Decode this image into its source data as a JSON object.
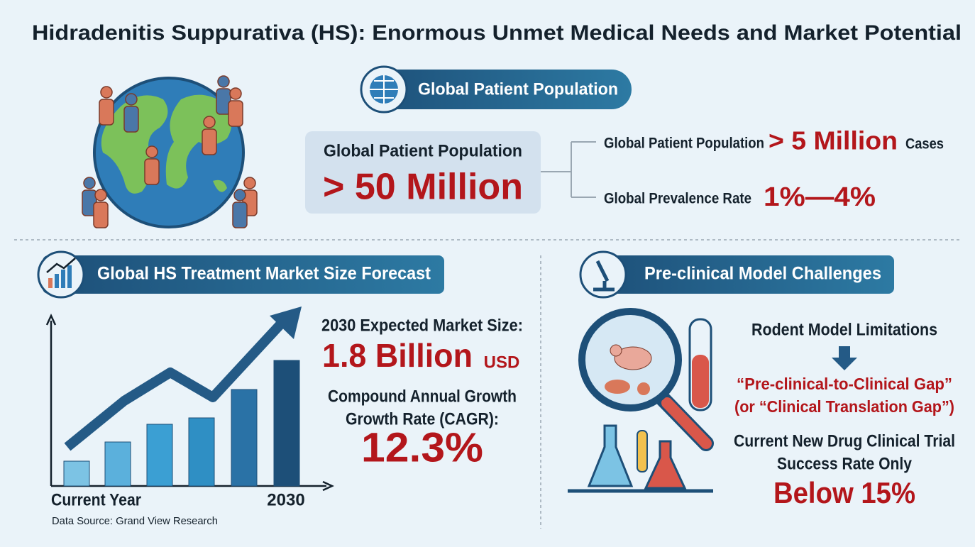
{
  "header": {
    "title": "Hidradenitis Suppurativa (HS): Enormous Unmet Medical Needs and Market Potential"
  },
  "population": {
    "heading": "Global Patient Population",
    "box_label": "Global Patient Population",
    "box_value": "> 50 Million",
    "cases_label": "Global Patient Population",
    "cases_value": "> 5 Million",
    "cases_unit": "Cases",
    "prevalence_label": "Global Prevalence Rate",
    "prevalence_value": "1%—4%"
  },
  "market": {
    "heading": "Global HS Treatment Market Size Forecast",
    "x_start_label": "Current Year",
    "x_end_label": "2030",
    "source": "Data Source: Grand View Research",
    "size_label": "2030 Expected Market Size:",
    "size_value": "1.8 Billion",
    "size_unit": "USD",
    "cagr_label_1": "Compound Annual Growth",
    "cagr_label_2": "Growth Rate (CAGR):",
    "cagr_value": "12.3%"
  },
  "preclinical": {
    "heading": "Pre-clinical Model Challenges",
    "limitation": "Rodent Model Limitations",
    "gap_1": "“Pre-clinical-to-Clinical Gap”",
    "gap_2": "(or “Clinical Translation Gap”)",
    "rate_label_1": "Current New Drug Clinical Trial",
    "rate_label_2": "Success Rate Only",
    "rate_value": "Below 15%"
  }
}
